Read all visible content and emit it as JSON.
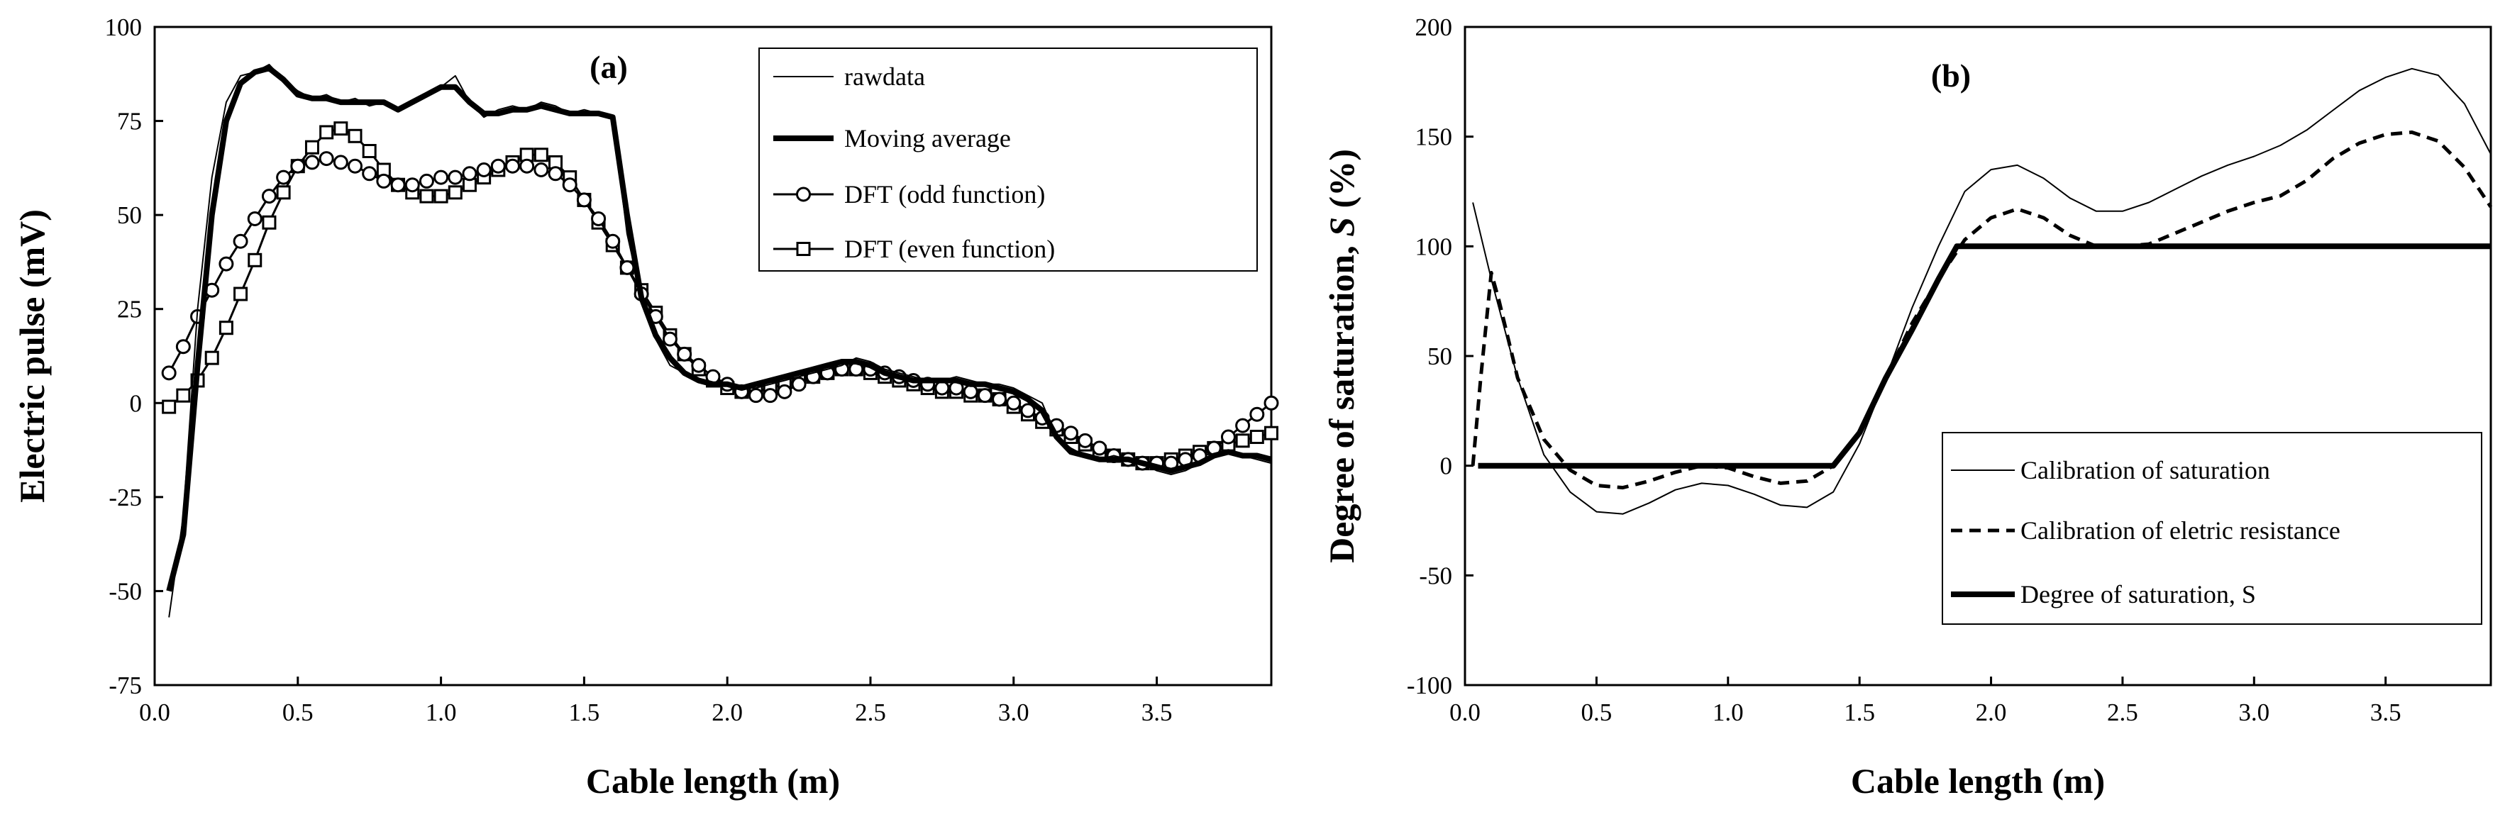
{
  "chart_data": [
    {
      "type": "line",
      "panel_label": "(a)",
      "title": "",
      "xlabel": "Cable length (m)",
      "ylabel": "Electric pulse (mV)",
      "xlim": [
        0,
        3.9
      ],
      "ylim": [
        -75,
        100
      ],
      "xticks": [
        0,
        0.5,
        1,
        1.5,
        2,
        2.5,
        3,
        3.5
      ],
      "xtick_labels": [
        "0.0",
        "0.5",
        "1.0",
        "1.5",
        "2.0",
        "2.5",
        "3.0",
        "3.5"
      ],
      "yticks": [
        -75,
        -50,
        -25,
        0,
        25,
        50,
        75,
        100
      ],
      "ytick_labels": [
        "-75",
        "-50",
        "-25",
        "0",
        "25",
        "50",
        "75",
        "100"
      ],
      "legend_position": "top-right",
      "series": [
        {
          "name": "rawdata",
          "style": "thin",
          "x": [
            0.05,
            0.1,
            0.15,
            0.2,
            0.25,
            0.3,
            0.35,
            0.4,
            0.45,
            0.5,
            0.55,
            0.6,
            0.65,
            0.7,
            0.75,
            0.8,
            0.85,
            0.9,
            0.95,
            1.0,
            1.05,
            1.1,
            1.15,
            1.2,
            1.25,
            1.3,
            1.35,
            1.4,
            1.45,
            1.5,
            1.55,
            1.6,
            1.65,
            1.7,
            1.75,
            1.8,
            1.85,
            1.9,
            1.95,
            2.0,
            2.05,
            2.1,
            2.15,
            2.2,
            2.25,
            2.3,
            2.35,
            2.4,
            2.45,
            2.5,
            2.55,
            2.6,
            2.65,
            2.7,
            2.75,
            2.8,
            2.85,
            2.9,
            2.95,
            3.0,
            3.05,
            3.1,
            3.15,
            3.2,
            3.25,
            3.3,
            3.35,
            3.4,
            3.45,
            3.5,
            3.55,
            3.6,
            3.65,
            3.7,
            3.75,
            3.8,
            3.85,
            3.9
          ],
          "values": [
            -57,
            -30,
            25,
            60,
            80,
            87,
            88,
            90,
            86,
            83,
            81,
            82,
            80,
            81,
            79,
            80,
            78,
            80,
            82,
            84,
            87,
            80,
            76,
            78,
            79,
            78,
            80,
            79,
            77,
            78,
            77,
            76,
            45,
            28,
            17,
            10,
            8,
            6,
            5,
            5,
            4,
            4,
            5,
            6,
            7,
            8,
            9,
            10,
            12,
            11,
            9,
            8,
            7,
            6,
            6,
            7,
            6,
            5,
            5,
            4,
            2,
            0,
            -9,
            -12,
            -14,
            -15,
            -14,
            -15,
            -16,
            -18,
            -19,
            -18,
            -16,
            -14,
            -13,
            -14,
            -15,
            -16
          ]
        },
        {
          "name": "Moving average",
          "style": "thick",
          "x": [
            0.05,
            0.1,
            0.15,
            0.2,
            0.25,
            0.3,
            0.35,
            0.4,
            0.45,
            0.5,
            0.55,
            0.6,
            0.65,
            0.7,
            0.75,
            0.8,
            0.85,
            0.9,
            0.95,
            1.0,
            1.05,
            1.1,
            1.15,
            1.2,
            1.25,
            1.3,
            1.35,
            1.4,
            1.45,
            1.5,
            1.55,
            1.6,
            1.65,
            1.7,
            1.75,
            1.8,
            1.85,
            1.9,
            1.95,
            2.0,
            2.05,
            2.1,
            2.15,
            2.2,
            2.25,
            2.3,
            2.35,
            2.4,
            2.45,
            2.5,
            2.55,
            2.6,
            2.65,
            2.7,
            2.75,
            2.8,
            2.85,
            2.9,
            2.95,
            3.0,
            3.05,
            3.1,
            3.15,
            3.2,
            3.25,
            3.3,
            3.35,
            3.4,
            3.45,
            3.5,
            3.55,
            3.6,
            3.65,
            3.7,
            3.75,
            3.8,
            3.85,
            3.9
          ],
          "values": [
            -50,
            -35,
            10,
            50,
            75,
            85,
            88,
            89,
            86,
            82,
            81,
            81,
            80,
            80,
            80,
            80,
            78,
            80,
            82,
            84,
            84,
            80,
            77,
            77,
            78,
            78,
            79,
            78,
            77,
            77,
            77,
            76,
            50,
            28,
            18,
            12,
            8,
            6,
            5,
            5,
            4,
            5,
            6,
            7,
            8,
            9,
            10,
            11,
            11,
            10,
            8,
            7,
            6,
            6,
            6,
            6,
            5,
            5,
            4,
            3,
            1,
            -2,
            -9,
            -13,
            -14,
            -15,
            -15,
            -15,
            -16,
            -17,
            -18,
            -17,
            -16,
            -14,
            -13,
            -14,
            -14,
            -15
          ]
        },
        {
          "name": "DFT (odd function)",
          "style": "circle",
          "x": [
            0.05,
            0.1,
            0.15,
            0.2,
            0.25,
            0.3,
            0.35,
            0.4,
            0.45,
            0.5,
            0.55,
            0.6,
            0.65,
            0.7,
            0.75,
            0.8,
            0.85,
            0.9,
            0.95,
            1.0,
            1.05,
            1.1,
            1.15,
            1.2,
            1.25,
            1.3,
            1.35,
            1.4,
            1.45,
            1.5,
            1.55,
            1.6,
            1.65,
            1.7,
            1.75,
            1.8,
            1.85,
            1.9,
            1.95,
            2.0,
            2.05,
            2.1,
            2.15,
            2.2,
            2.25,
            2.3,
            2.35,
            2.4,
            2.45,
            2.5,
            2.55,
            2.6,
            2.65,
            2.7,
            2.75,
            2.8,
            2.85,
            2.9,
            2.95,
            3.0,
            3.05,
            3.1,
            3.15,
            3.2,
            3.25,
            3.3,
            3.35,
            3.4,
            3.45,
            3.5,
            3.55,
            3.6,
            3.65,
            3.7,
            3.75,
            3.8,
            3.85,
            3.9
          ],
          "values": [
            8,
            15,
            23,
            30,
            37,
            43,
            49,
            55,
            60,
            63,
            64,
            65,
            64,
            63,
            61,
            59,
            58,
            58,
            59,
            60,
            60,
            61,
            62,
            63,
            63,
            63,
            62,
            61,
            58,
            54,
            49,
            43,
            36,
            29,
            23,
            17,
            13,
            10,
            7,
            5,
            3,
            2,
            2,
            3,
            5,
            7,
            8,
            9,
            9,
            9,
            8,
            7,
            6,
            5,
            4,
            4,
            3,
            2,
            1,
            0,
            -2,
            -4,
            -6,
            -8,
            -10,
            -12,
            -14,
            -15,
            -16,
            -16,
            -16,
            -15,
            -14,
            -12,
            -9,
            -6,
            -3,
            0
          ]
        },
        {
          "name": "DFT (even function)",
          "style": "square",
          "x": [
            0.05,
            0.1,
            0.15,
            0.2,
            0.25,
            0.3,
            0.35,
            0.4,
            0.45,
            0.5,
            0.55,
            0.6,
            0.65,
            0.7,
            0.75,
            0.8,
            0.85,
            0.9,
            0.95,
            1.0,
            1.05,
            1.1,
            1.15,
            1.2,
            1.25,
            1.3,
            1.35,
            1.4,
            1.45,
            1.5,
            1.55,
            1.6,
            1.65,
            1.7,
            1.75,
            1.8,
            1.85,
            1.9,
            1.95,
            2.0,
            2.05,
            2.1,
            2.15,
            2.2,
            2.25,
            2.3,
            2.35,
            2.4,
            2.45,
            2.5,
            2.55,
            2.6,
            2.65,
            2.7,
            2.75,
            2.8,
            2.85,
            2.9,
            2.95,
            3.0,
            3.05,
            3.1,
            3.15,
            3.2,
            3.25,
            3.3,
            3.35,
            3.4,
            3.45,
            3.5,
            3.55,
            3.6,
            3.65,
            3.7,
            3.75,
            3.8,
            3.85,
            3.9
          ],
          "values": [
            -1,
            2,
            6,
            12,
            20,
            29,
            38,
            48,
            56,
            63,
            68,
            72,
            73,
            71,
            67,
            62,
            58,
            56,
            55,
            55,
            56,
            58,
            60,
            62,
            64,
            66,
            66,
            64,
            60,
            54,
            48,
            42,
            36,
            30,
            24,
            18,
            13,
            9,
            6,
            4,
            3,
            3,
            4,
            5,
            6,
            7,
            8,
            9,
            9,
            8,
            7,
            6,
            5,
            4,
            3,
            3,
            2,
            2,
            1,
            -1,
            -3,
            -5,
            -7,
            -9,
            -11,
            -13,
            -14,
            -15,
            -16,
            -16,
            -15,
            -14,
            -13,
            -12,
            -11,
            -10,
            -9,
            -8
          ]
        }
      ]
    },
    {
      "type": "line",
      "panel_label": "(b)",
      "title": "",
      "xlabel": "Cable length (m)",
      "ylabel_plain": "Degree of saturation, ",
      "ylabel_italic": "S",
      "ylabel_suffix": " (%)",
      "xlim": [
        0,
        3.9
      ],
      "ylim": [
        -100,
        200
      ],
      "xticks": [
        0,
        0.5,
        1,
        1.5,
        2,
        2.5,
        3,
        3.5
      ],
      "xtick_labels": [
        "0.0",
        "0.5",
        "1.0",
        "1.5",
        "2.0",
        "2.5",
        "3.0",
        "3.5"
      ],
      "yticks": [
        -100,
        -50,
        0,
        50,
        100,
        150,
        200
      ],
      "ytick_labels": [
        "-100",
        "-50",
        "0",
        "50",
        "100",
        "150",
        "200"
      ],
      "legend_position": "bottom-right",
      "series": [
        {
          "name": "Calibration of saturation",
          "style": "thin",
          "x": [
            0.03,
            0.1,
            0.2,
            0.3,
            0.4,
            0.5,
            0.6,
            0.7,
            0.8,
            0.9,
            1.0,
            1.1,
            1.2,
            1.3,
            1.4,
            1.5,
            1.6,
            1.7,
            1.8,
            1.9,
            2.0,
            2.1,
            2.2,
            2.3,
            2.4,
            2.5,
            2.6,
            2.7,
            2.8,
            2.9,
            3.0,
            3.1,
            3.2,
            3.3,
            3.4,
            3.5,
            3.6,
            3.7,
            3.8,
            3.9
          ],
          "values": [
            120,
            85,
            40,
            5,
            -12,
            -21,
            -22,
            -17,
            -11,
            -8,
            -9,
            -13,
            -18,
            -19,
            -12,
            10,
            40,
            72,
            100,
            125,
            135,
            137,
            131,
            122,
            116,
            116,
            120,
            126,
            132,
            137,
            141,
            146,
            153,
            162,
            171,
            177,
            181,
            178,
            165,
            142
          ]
        },
        {
          "name": "Calibration of eletric resistance",
          "style": "dashed",
          "x": [
            0.03,
            0.06,
            0.1,
            0.13,
            0.2,
            0.3,
            0.4,
            0.5,
            0.6,
            0.7,
            0.8,
            0.9,
            1.0,
            1.1,
            1.2,
            1.3,
            1.4,
            1.5,
            1.6,
            1.7,
            1.8,
            1.9,
            2.0,
            2.1,
            2.2,
            2.3,
            2.4,
            2.5,
            2.6,
            2.7,
            2.8,
            2.9,
            3.0,
            3.1,
            3.2,
            3.3,
            3.4,
            3.5,
            3.6,
            3.7,
            3.8,
            3.9
          ],
          "values": [
            0,
            40,
            88,
            75,
            40,
            12,
            -2,
            -9,
            -10,
            -7,
            -3,
            0,
            -1,
            -5,
            -8,
            -7,
            0,
            15,
            40,
            65,
            85,
            103,
            113,
            117,
            113,
            105,
            100,
            100,
            101,
            106,
            111,
            116,
            120,
            123,
            130,
            140,
            147,
            151,
            152,
            148,
            136,
            118
          ]
        },
        {
          "name": "Degree of saturation, S",
          "style": "thick",
          "x": [
            0.05,
            0.3,
            0.5,
            0.7,
            0.9,
            1.0,
            1.2,
            1.4,
            1.5,
            1.6,
            1.7,
            1.8,
            1.87,
            2.0,
            2.5,
            3.0,
            3.5,
            3.9
          ],
          "values": [
            0,
            0,
            0,
            0,
            0,
            0,
            0,
            0,
            15,
            40,
            62,
            85,
            100,
            100,
            100,
            100,
            100,
            100
          ]
        }
      ]
    }
  ]
}
